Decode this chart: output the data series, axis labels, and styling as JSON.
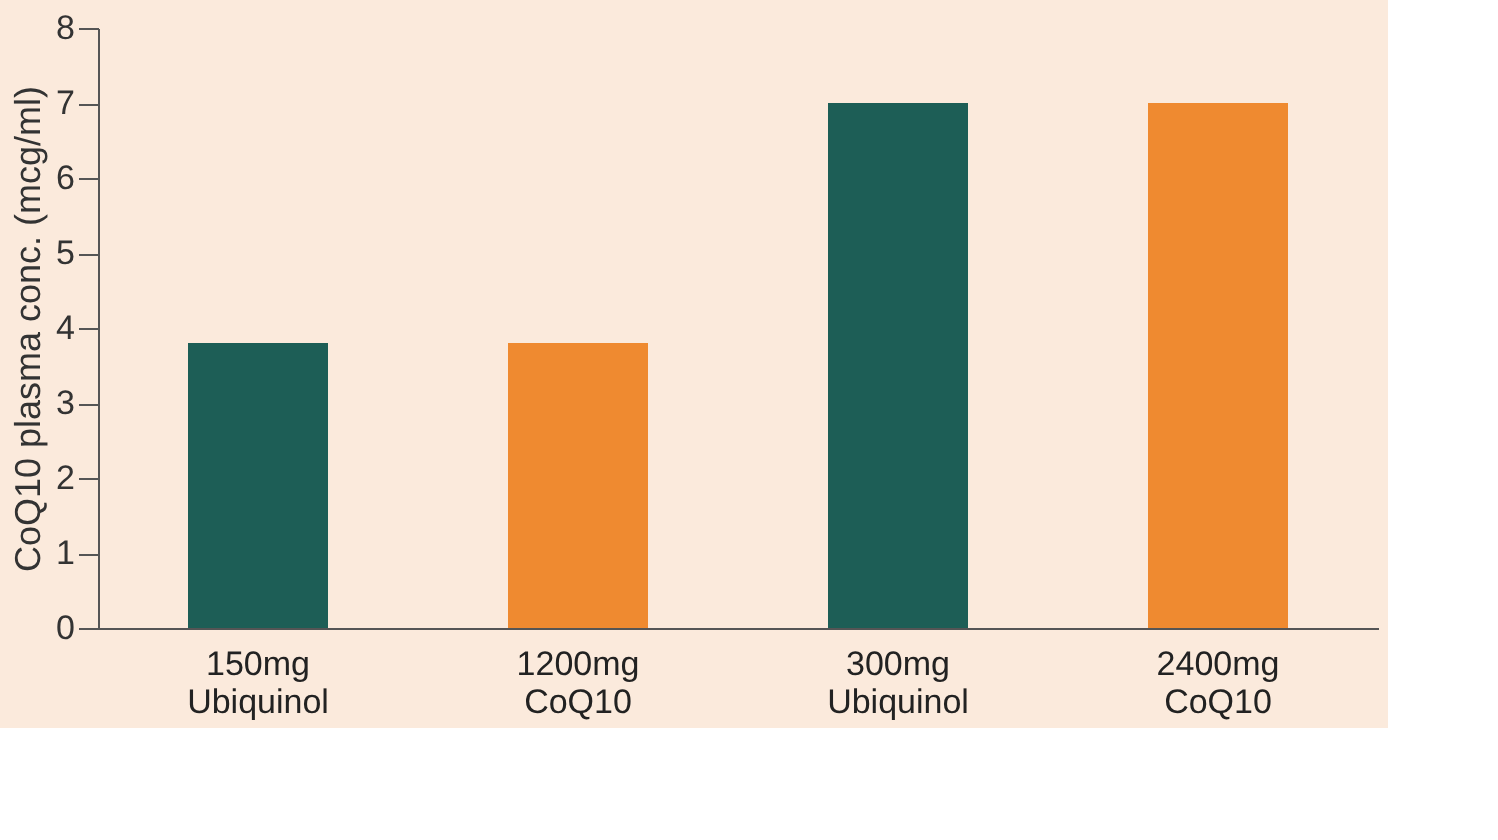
{
  "chart_data": {
    "type": "bar",
    "ylabel": "CoQ10 plasma conc. (mcg/ml)",
    "categories": [
      "150mg\nUbiquinol",
      "1200mg\nCoQ10",
      "300mg\nUbiquinol",
      "2400mg\nCoQ10"
    ],
    "values": [
      3.8,
      3.8,
      7.0,
      7.0
    ],
    "colors": [
      "#1d5e56",
      "#ef8a30",
      "#1d5e56",
      "#ef8a30"
    ],
    "ylim": [
      0,
      8
    ],
    "yticks": [
      0,
      1,
      2,
      3,
      4,
      5,
      6,
      7,
      8
    ],
    "grid": false
  }
}
